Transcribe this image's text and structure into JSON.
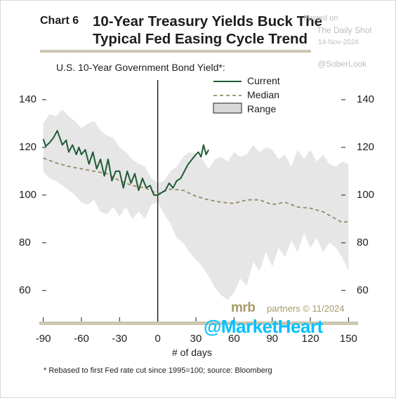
{
  "header": {
    "chart_number": "Chart 6",
    "title_line1": "10-Year Treasury Yields Buck The",
    "title_line2": "Typical Fed Easing Cycle Trend"
  },
  "watermark": {
    "posted_on": "Posted on",
    "source": "The Daily Shot",
    "date": "14-Nov-2024",
    "handle": "@SoberLook"
  },
  "branding": {
    "logo_text": "mrb",
    "credit": "partners © 11/2024",
    "overlay_handle": "@MarketHeart"
  },
  "footnote": "* Rebased to first Fed rate cut since 1995=100; source: Bloomberg",
  "colors": {
    "current": "#1f5a35",
    "median": "#958866",
    "range_fill": "#e6e6e6",
    "axis": "#cdc6b1",
    "vline": "#1d1d1d",
    "overlay": "#00c2ff"
  },
  "chart_data": {
    "type": "line",
    "title": "U.S. 10-Year Government Bond Yield*:",
    "xlabel": "# of days",
    "ylabel": "",
    "xlim": [
      -92,
      152
    ],
    "ylim": [
      47,
      150
    ],
    "x_ticks": [
      -90,
      -60,
      -30,
      0,
      30,
      60,
      90,
      120,
      150
    ],
    "y_ticks": [
      60,
      80,
      100,
      120,
      140
    ],
    "x_tick_labels": [
      "-90",
      "-60",
      "-30",
      "0",
      "30",
      "60",
      "90",
      "120",
      "150"
    ],
    "y_tick_labels": [
      "60",
      "80",
      "100",
      "120",
      "140"
    ],
    "reference_line_x": 0,
    "legend": {
      "position": "top-right",
      "current_label": "Current",
      "median_label": "Median",
      "range_label": "Range"
    },
    "series": [
      {
        "name": "Current",
        "style": "solid",
        "x": [
          -90,
          -88,
          -85,
          -82,
          -79,
          -77,
          -75,
          -72,
          -70,
          -67,
          -64,
          -62,
          -60,
          -57,
          -54,
          -51,
          -48,
          -45,
          -42,
          -39,
          -36,
          -33,
          -30,
          -27,
          -24,
          -21,
          -18,
          -15,
          -12,
          -9,
          -6,
          -3,
          0,
          3,
          6,
          9,
          12,
          15,
          18,
          21,
          24,
          27,
          30,
          32,
          34,
          36,
          38,
          40
        ],
        "y": [
          123.5,
          120.5,
          122,
          124,
          127,
          124,
          121,
          123,
          118,
          121,
          117,
          120,
          117,
          119,
          113,
          118,
          111,
          115,
          108,
          115,
          106,
          110,
          110,
          103,
          110,
          105,
          109,
          102,
          107,
          103,
          104,
          100,
          100,
          101,
          102,
          105,
          103,
          106,
          107,
          110,
          113,
          115,
          117,
          118,
          116,
          121,
          117,
          119
        ]
      },
      {
        "name": "Median",
        "style": "dashed",
        "x": [
          -90,
          -80,
          -70,
          -60,
          -50,
          -40,
          -30,
          -20,
          -10,
          0,
          10,
          20,
          30,
          40,
          50,
          60,
          70,
          80,
          90,
          100,
          110,
          120,
          130,
          140,
          145,
          150
        ],
        "y": [
          115.5,
          113.5,
          112,
          111,
          110,
          109,
          106,
          104,
          103,
          100.5,
          102.5,
          102,
          99.5,
          98,
          97,
          96.5,
          98,
          98,
          96,
          97,
          95,
          94.5,
          93,
          90,
          88.5,
          89
        ]
      },
      {
        "name": "Range",
        "style": "band",
        "x": [
          -90,
          -85,
          -80,
          -75,
          -70,
          -65,
          -60,
          -55,
          -50,
          -45,
          -40,
          -35,
          -30,
          -25,
          -20,
          -15,
          -10,
          -5,
          0,
          5,
          10,
          15,
          20,
          25,
          30,
          35,
          40,
          45,
          50,
          55,
          60,
          65,
          70,
          75,
          80,
          85,
          90,
          95,
          100,
          105,
          110,
          115,
          120,
          125,
          130,
          135,
          140,
          145,
          150
        ],
        "upper": [
          130,
          134,
          133,
          136,
          133,
          131,
          128,
          130,
          131,
          127,
          125,
          124,
          120,
          118,
          115,
          113,
          112,
          107,
          105,
          106,
          110,
          112,
          116,
          118,
          117,
          115,
          111,
          115,
          116,
          114,
          118,
          116,
          117,
          121,
          118,
          120,
          119,
          115,
          117,
          112,
          119,
          115,
          119,
          114,
          117,
          113,
          112,
          114,
          113
        ],
        "lower": [
          110,
          107,
          106,
          104,
          102,
          100,
          97,
          96,
          98,
          93,
          92,
          95,
          91,
          95,
          90,
          93,
          90,
          96,
          97,
          92,
          88,
          82,
          80,
          76,
          73,
          70,
          66,
          61,
          58,
          56,
          59,
          65,
          62,
          72,
          68,
          76,
          70,
          78,
          74,
          81,
          76,
          84,
          78,
          82,
          76,
          80,
          78,
          74,
          68
        ]
      }
    ]
  }
}
